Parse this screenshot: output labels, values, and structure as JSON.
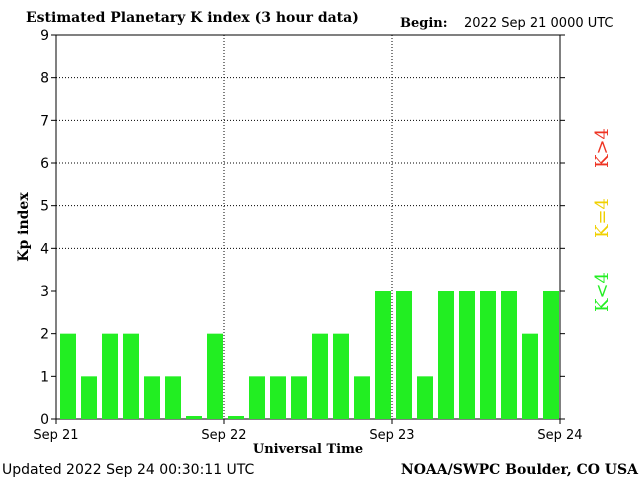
{
  "header": {
    "title": "Estimated Planetary K index (3 hour data)",
    "begin_label": "Begin:",
    "begin_value": "2022 Sep 21 0000 UTC"
  },
  "footer": {
    "updated": "Updated 2022 Sep 24 00:30:11 UTC",
    "credit": "NOAA/SWPC Boulder, CO USA"
  },
  "legend": {
    "low": "K<4",
    "mid": "K=4",
    "high": "K>4"
  },
  "colors": {
    "low": "#22ee22",
    "mid": "#f0d000",
    "high": "#ee3322"
  },
  "chart_data": {
    "type": "bar",
    "title": "Estimated Planetary K index (3 hour data)",
    "xlabel": "Universal Time",
    "ylabel": "Kp index",
    "ylim": [
      0,
      9
    ],
    "yticks": [
      "0",
      "1",
      "2",
      "3",
      "4",
      "5",
      "6",
      "7",
      "8",
      "9"
    ],
    "xticks": [
      "Sep 21",
      "Sep 22",
      "Sep 23",
      "Sep 24"
    ],
    "grid": true,
    "values": [
      2,
      1,
      2,
      2,
      1,
      1,
      0.07,
      2,
      0.07,
      1,
      1,
      1,
      2,
      2,
      1,
      3,
      3,
      1,
      3,
      3,
      3,
      3,
      2,
      3
    ]
  }
}
